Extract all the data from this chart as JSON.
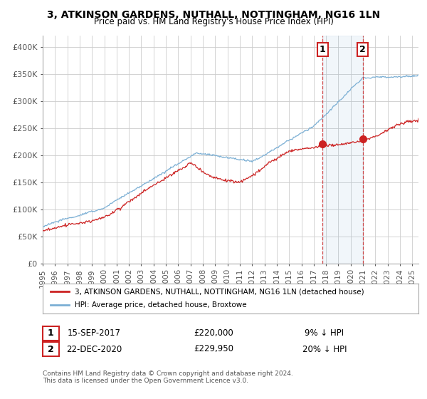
{
  "title": "3, ATKINSON GARDENS, NUTHALL, NOTTINGHAM, NG16 1LN",
  "subtitle": "Price paid vs. HM Land Registry's House Price Index (HPI)",
  "xlim_start": 1995.0,
  "xlim_end": 2025.5,
  "ylim": [
    0,
    420000
  ],
  "yticks": [
    0,
    50000,
    100000,
    150000,
    200000,
    250000,
    300000,
    350000,
    400000
  ],
  "ytick_labels": [
    "£0",
    "£50K",
    "£100K",
    "£150K",
    "£200K",
    "£250K",
    "£300K",
    "£350K",
    "£400K"
  ],
  "xtick_years": [
    1995,
    1996,
    1997,
    1998,
    1999,
    2000,
    2001,
    2002,
    2003,
    2004,
    2005,
    2006,
    2007,
    2008,
    2009,
    2010,
    2011,
    2012,
    2013,
    2014,
    2015,
    2016,
    2017,
    2018,
    2019,
    2020,
    2021,
    2022,
    2023,
    2024,
    2025
  ],
  "hpi_color": "#7bafd4",
  "sale_color": "#cc2222",
  "marker1_year": 2017.71,
  "marker1_value": 220000,
  "marker1_label": "1",
  "marker2_year": 2020.98,
  "marker2_value": 229950,
  "marker2_label": "2",
  "legend_sale": "3, ATKINSON GARDENS, NUTHALL, NOTTINGHAM, NG16 1LN (detached house)",
  "legend_hpi": "HPI: Average price, detached house, Broxtowe",
  "annotation1_date": "15-SEP-2017",
  "annotation1_price": "£220,000",
  "annotation1_hpi": "9% ↓ HPI",
  "annotation2_date": "22-DEC-2020",
  "annotation2_price": "£229,950",
  "annotation2_hpi": "20% ↓ HPI",
  "footnote": "Contains HM Land Registry data © Crown copyright and database right 2024.\nThis data is licensed under the Open Government Licence v3.0.",
  "background_color": "#ffffff",
  "grid_color": "#cccccc"
}
